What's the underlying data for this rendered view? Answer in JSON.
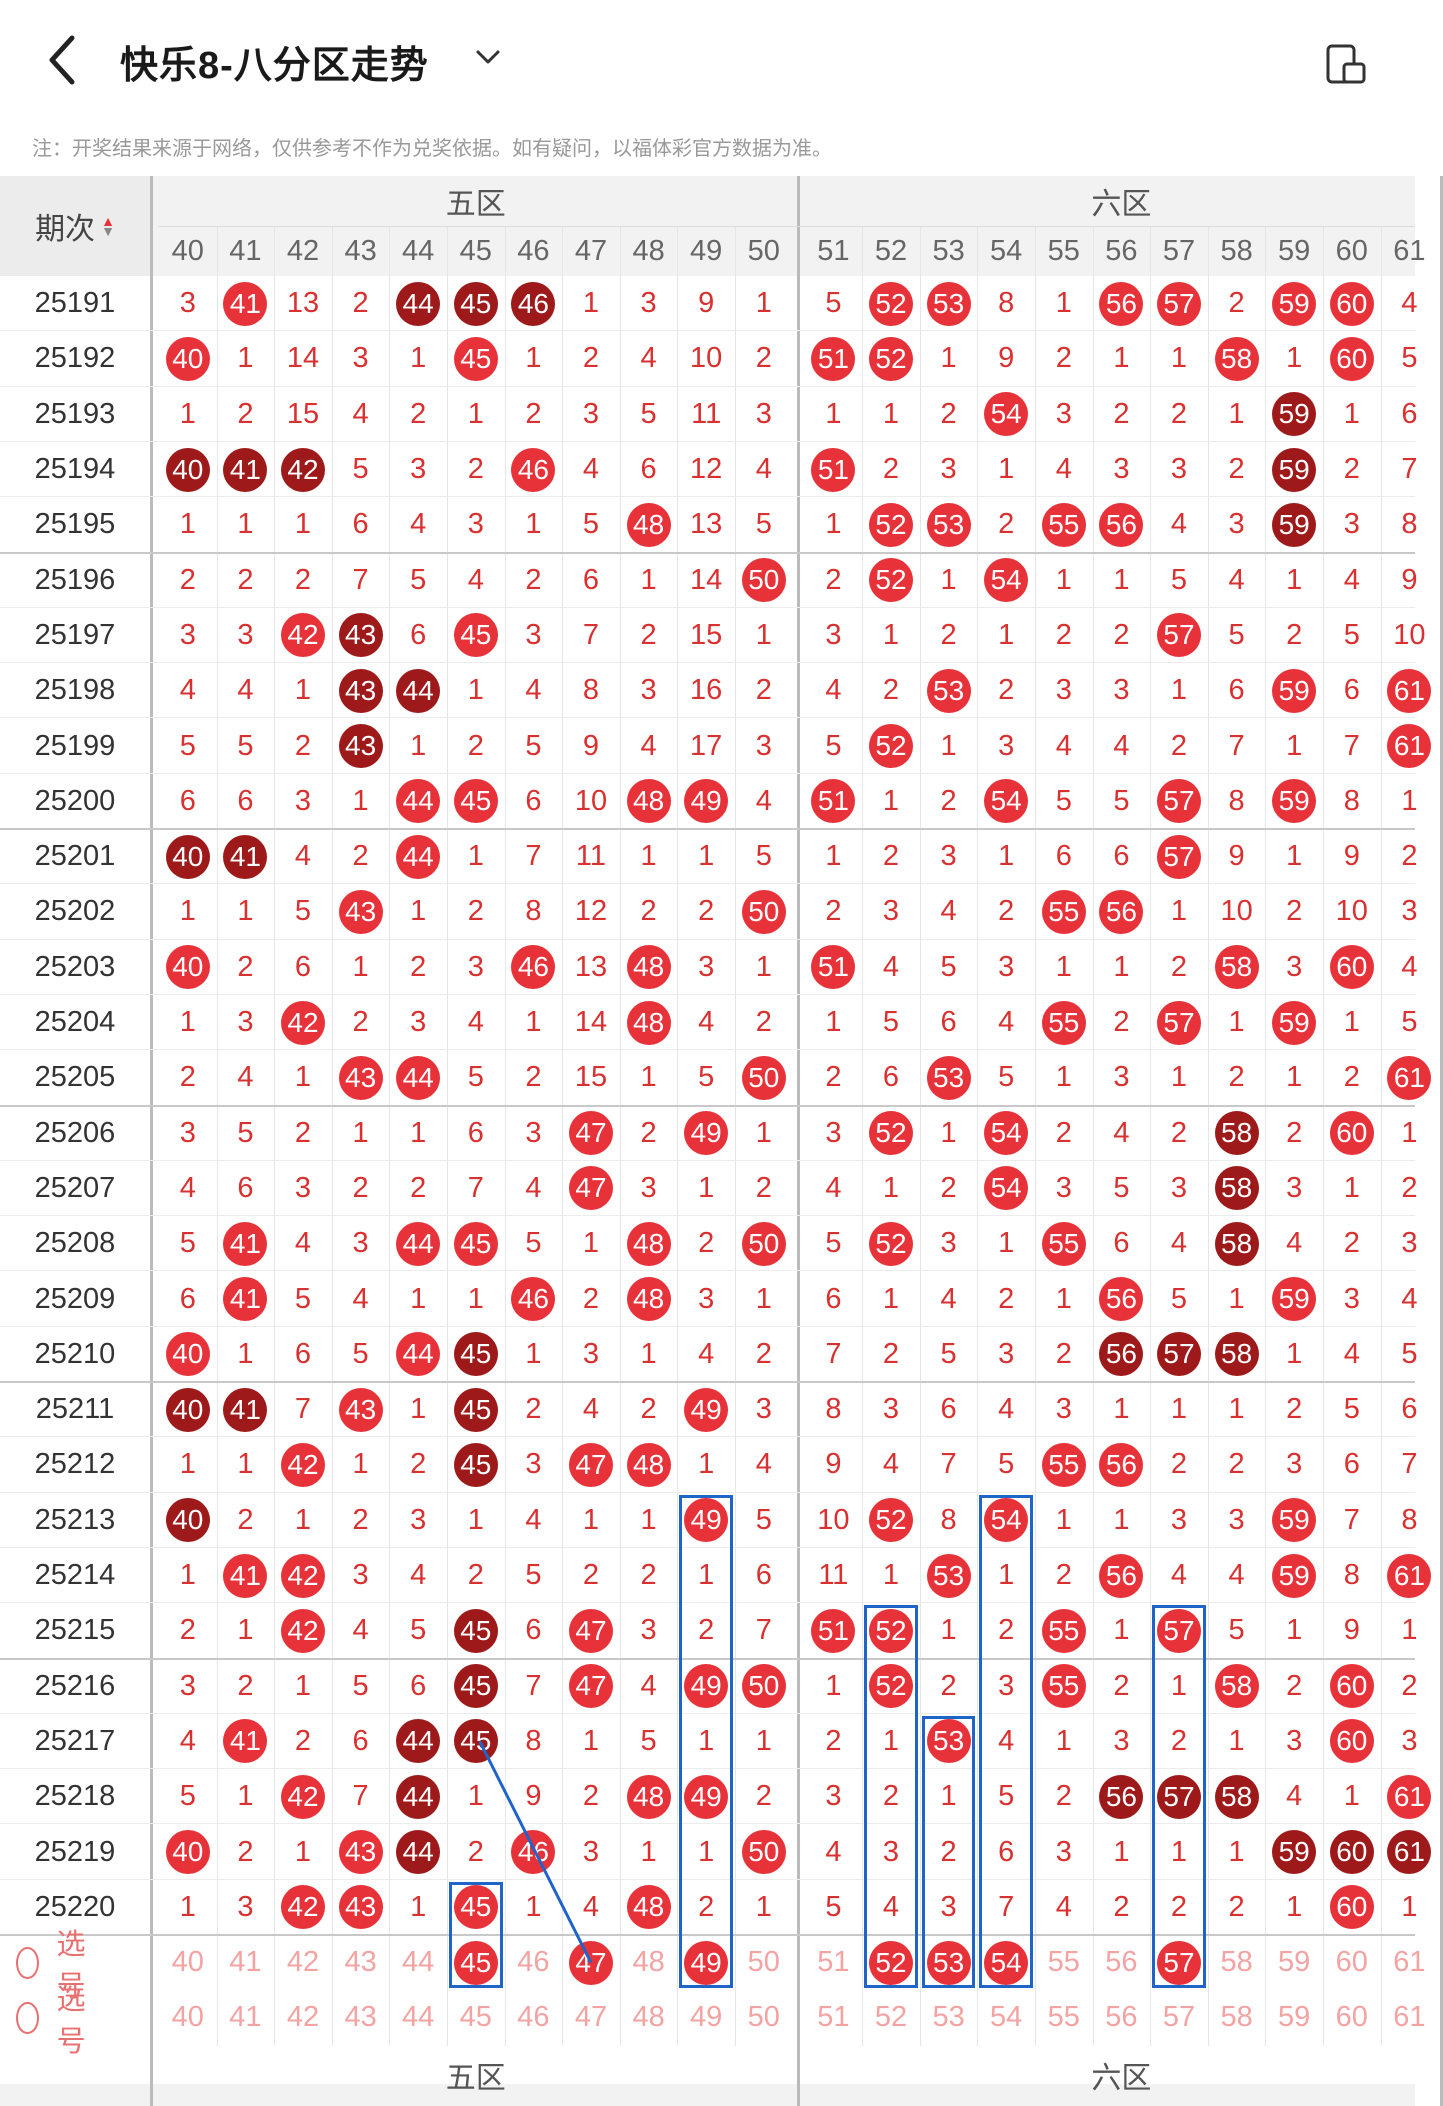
{
  "header": {
    "title": "快乐8-八分区走势",
    "back_icon": "back-arrow-icon",
    "dropdown_icon": "chevron-down-icon",
    "right_icon": "screen-layout-icon"
  },
  "notice": "注：开奖结果来源于网络，仅供参考不作为兑奖依据。如有疑问，以福体彩官方数据为准。",
  "table": {
    "period_label": "期次",
    "zones": [
      {
        "label": "五区",
        "first": 40,
        "last": 50
      },
      {
        "label": "六区",
        "first": 51,
        "last": 61
      }
    ],
    "columns": [
      40,
      41,
      42,
      43,
      44,
      45,
      46,
      47,
      48,
      49,
      50,
      51,
      52,
      53,
      54,
      55,
      56,
      57,
      58,
      59,
      60,
      61
    ],
    "rows": [
      {
        "p": "25191",
        "c": [
          "3",
          "r41",
          "13",
          "2",
          "d44",
          "d45",
          "d46",
          "1",
          "3",
          "9",
          "1",
          "5",
          "r52",
          "r53",
          "8",
          "1",
          "r56",
          "r57",
          "2",
          "r59",
          "r60",
          "4"
        ]
      },
      {
        "p": "25192",
        "c": [
          "r40",
          "1",
          "14",
          "3",
          "1",
          "r45",
          "1",
          "2",
          "4",
          "10",
          "2",
          "r51",
          "r52",
          "1",
          "9",
          "2",
          "1",
          "1",
          "r58",
          "1",
          "r60",
          "5"
        ]
      },
      {
        "p": "25193",
        "c": [
          "1",
          "2",
          "15",
          "4",
          "2",
          "1",
          "2",
          "3",
          "5",
          "11",
          "3",
          "1",
          "1",
          "2",
          "r54",
          "3",
          "2",
          "2",
          "1",
          "d59",
          "1",
          "6"
        ]
      },
      {
        "p": "25194",
        "c": [
          "d40",
          "d41",
          "d42",
          "5",
          "3",
          "2",
          "r46",
          "4",
          "6",
          "12",
          "4",
          "r51",
          "2",
          "3",
          "1",
          "4",
          "3",
          "3",
          "2",
          "d59",
          "2",
          "7"
        ]
      },
      {
        "p": "25195",
        "c": [
          "1",
          "1",
          "1",
          "6",
          "4",
          "3",
          "1",
          "5",
          "r48",
          "13",
          "5",
          "1",
          "r52",
          "r53",
          "2",
          "r55",
          "r56",
          "4",
          "3",
          "d59",
          "3",
          "8"
        ]
      },
      {
        "p": "25196",
        "c": [
          "2",
          "2",
          "2",
          "7",
          "5",
          "4",
          "2",
          "6",
          "1",
          "14",
          "r50",
          "2",
          "r52",
          "1",
          "r54",
          "1",
          "1",
          "5",
          "4",
          "1",
          "4",
          "9"
        ]
      },
      {
        "p": "25197",
        "c": [
          "3",
          "3",
          "r42",
          "d43",
          "6",
          "r45",
          "3",
          "7",
          "2",
          "15",
          "1",
          "3",
          "1",
          "2",
          "1",
          "2",
          "2",
          "r57",
          "5",
          "2",
          "5",
          "10"
        ]
      },
      {
        "p": "25198",
        "c": [
          "4",
          "4",
          "1",
          "d43",
          "d44",
          "1",
          "4",
          "8",
          "3",
          "16",
          "2",
          "4",
          "2",
          "r53",
          "2",
          "3",
          "3",
          "1",
          "6",
          "r59",
          "6",
          "r61"
        ]
      },
      {
        "p": "25199",
        "c": [
          "5",
          "5",
          "2",
          "d43",
          "1",
          "2",
          "5",
          "9",
          "4",
          "17",
          "3",
          "5",
          "r52",
          "1",
          "3",
          "4",
          "4",
          "2",
          "7",
          "1",
          "7",
          "r61"
        ]
      },
      {
        "p": "25200",
        "c": [
          "6",
          "6",
          "3",
          "1",
          "r44",
          "r45",
          "6",
          "10",
          "r48",
          "r49",
          "4",
          "r51",
          "1",
          "2",
          "r54",
          "5",
          "5",
          "r57",
          "8",
          "r59",
          "8",
          "1"
        ]
      },
      {
        "p": "25201",
        "c": [
          "d40",
          "d41",
          "4",
          "2",
          "r44",
          "1",
          "7",
          "11",
          "1",
          "1",
          "5",
          "1",
          "2",
          "3",
          "1",
          "6",
          "6",
          "r57",
          "9",
          "1",
          "9",
          "2"
        ]
      },
      {
        "p": "25202",
        "c": [
          "1",
          "1",
          "5",
          "r43",
          "1",
          "2",
          "8",
          "12",
          "2",
          "2",
          "r50",
          "2",
          "3",
          "4",
          "2",
          "r55",
          "r56",
          "1",
          "10",
          "2",
          "10",
          "3"
        ]
      },
      {
        "p": "25203",
        "c": [
          "r40",
          "2",
          "6",
          "1",
          "2",
          "3",
          "r46",
          "13",
          "r48",
          "3",
          "1",
          "r51",
          "4",
          "5",
          "3",
          "1",
          "1",
          "2",
          "r58",
          "3",
          "r60",
          "4"
        ]
      },
      {
        "p": "25204",
        "c": [
          "1",
          "3",
          "r42",
          "2",
          "3",
          "4",
          "1",
          "14",
          "r48",
          "4",
          "2",
          "1",
          "5",
          "6",
          "4",
          "r55",
          "2",
          "r57",
          "1",
          "r59",
          "1",
          "5"
        ]
      },
      {
        "p": "25205",
        "c": [
          "2",
          "4",
          "1",
          "r43",
          "r44",
          "5",
          "2",
          "15",
          "1",
          "5",
          "r50",
          "2",
          "6",
          "r53",
          "5",
          "1",
          "3",
          "1",
          "2",
          "1",
          "2",
          "r61"
        ]
      },
      {
        "p": "25206",
        "c": [
          "3",
          "5",
          "2",
          "1",
          "1",
          "6",
          "3",
          "r47",
          "2",
          "r49",
          "1",
          "3",
          "r52",
          "1",
          "r54",
          "2",
          "4",
          "2",
          "d58",
          "2",
          "r60",
          "1"
        ]
      },
      {
        "p": "25207",
        "c": [
          "4",
          "6",
          "3",
          "2",
          "2",
          "7",
          "4",
          "r47",
          "3",
          "1",
          "2",
          "4",
          "1",
          "2",
          "r54",
          "3",
          "5",
          "3",
          "d58",
          "3",
          "1",
          "2"
        ]
      },
      {
        "p": "25208",
        "c": [
          "5",
          "r41",
          "4",
          "3",
          "r44",
          "r45",
          "5",
          "1",
          "r48",
          "2",
          "r50",
          "5",
          "r52",
          "3",
          "1",
          "r55",
          "6",
          "4",
          "d58",
          "4",
          "2",
          "3"
        ]
      },
      {
        "p": "25209",
        "c": [
          "6",
          "r41",
          "5",
          "4",
          "1",
          "1",
          "r46",
          "2",
          "r48",
          "3",
          "1",
          "6",
          "1",
          "4",
          "2",
          "1",
          "r56",
          "5",
          "1",
          "r59",
          "3",
          "4"
        ]
      },
      {
        "p": "25210",
        "c": [
          "r40",
          "1",
          "6",
          "5",
          "r44",
          "d45",
          "1",
          "3",
          "1",
          "4",
          "2",
          "7",
          "2",
          "5",
          "3",
          "2",
          "d56",
          "d57",
          "d58",
          "1",
          "4",
          "5"
        ]
      },
      {
        "p": "25211",
        "c": [
          "d40",
          "d41",
          "7",
          "r43",
          "1",
          "d45",
          "2",
          "4",
          "2",
          "r49",
          "3",
          "8",
          "3",
          "6",
          "4",
          "3",
          "1",
          "1",
          "1",
          "2",
          "5",
          "6"
        ]
      },
      {
        "p": "25212",
        "c": [
          "1",
          "1",
          "r42",
          "1",
          "2",
          "d45",
          "3",
          "r47",
          "r48",
          "1",
          "4",
          "9",
          "4",
          "7",
          "5",
          "r55",
          "r56",
          "2",
          "2",
          "3",
          "6",
          "7"
        ]
      },
      {
        "p": "25213",
        "c": [
          "d40",
          "2",
          "1",
          "2",
          "3",
          "1",
          "4",
          "1",
          "1",
          "r49",
          "5",
          "10",
          "r52",
          "8",
          "r54",
          "1",
          "1",
          "3",
          "3",
          "r59",
          "7",
          "8"
        ]
      },
      {
        "p": "25214",
        "c": [
          "1",
          "r41",
          "r42",
          "3",
          "4",
          "2",
          "5",
          "2",
          "2",
          "1",
          "6",
          "11",
          "1",
          "r53",
          "1",
          "2",
          "r56",
          "4",
          "4",
          "r59",
          "8",
          "r61"
        ]
      },
      {
        "p": "25215",
        "c": [
          "2",
          "1",
          "r42",
          "4",
          "5",
          "d45",
          "6",
          "r47",
          "3",
          "2",
          "7",
          "r51",
          "r52",
          "1",
          "2",
          "r55",
          "1",
          "r57",
          "5",
          "1",
          "9",
          "1"
        ]
      },
      {
        "p": "25216",
        "c": [
          "3",
          "2",
          "1",
          "5",
          "6",
          "d45",
          "7",
          "r47",
          "4",
          "r49",
          "r50",
          "1",
          "r52",
          "2",
          "3",
          "r55",
          "2",
          "1",
          "r58",
          "2",
          "r60",
          "2"
        ]
      },
      {
        "p": "25217",
        "c": [
          "4",
          "r41",
          "2",
          "6",
          "d44",
          "d45",
          "8",
          "1",
          "5",
          "1",
          "1",
          "2",
          "1",
          "r53",
          "4",
          "1",
          "3",
          "2",
          "1",
          "3",
          "r60",
          "3"
        ]
      },
      {
        "p": "25218",
        "c": [
          "5",
          "1",
          "r42",
          "7",
          "d44",
          "1",
          "9",
          "2",
          "r48",
          "r49",
          "2",
          "3",
          "2",
          "1",
          "5",
          "2",
          "d56",
          "d57",
          "d58",
          "4",
          "1",
          "r61"
        ]
      },
      {
        "p": "25219",
        "c": [
          "r40",
          "2",
          "1",
          "r43",
          "d44",
          "2",
          "r46",
          "3",
          "1",
          "1",
          "r50",
          "4",
          "3",
          "2",
          "6",
          "3",
          "1",
          "1",
          "1",
          "d59",
          "d60",
          "d61"
        ]
      },
      {
        "p": "25220",
        "c": [
          "1",
          "3",
          "r42",
          "r43",
          "1",
          "r45",
          "1",
          "4",
          "r48",
          "2",
          "1",
          "5",
          "4",
          "3",
          "7",
          "4",
          "2",
          "2",
          "2",
          "1",
          "r60",
          "1"
        ]
      }
    ],
    "select_label": "选号",
    "select_rows": [
      {
        "picked": [
          45,
          47,
          49,
          52,
          53,
          54,
          57
        ]
      },
      {
        "picked": []
      }
    ]
  },
  "colors": {
    "red": "#e8323a",
    "dark": "#9e1a1a",
    "box": "#1f64c8",
    "pink_bg": "#fdeaea"
  }
}
